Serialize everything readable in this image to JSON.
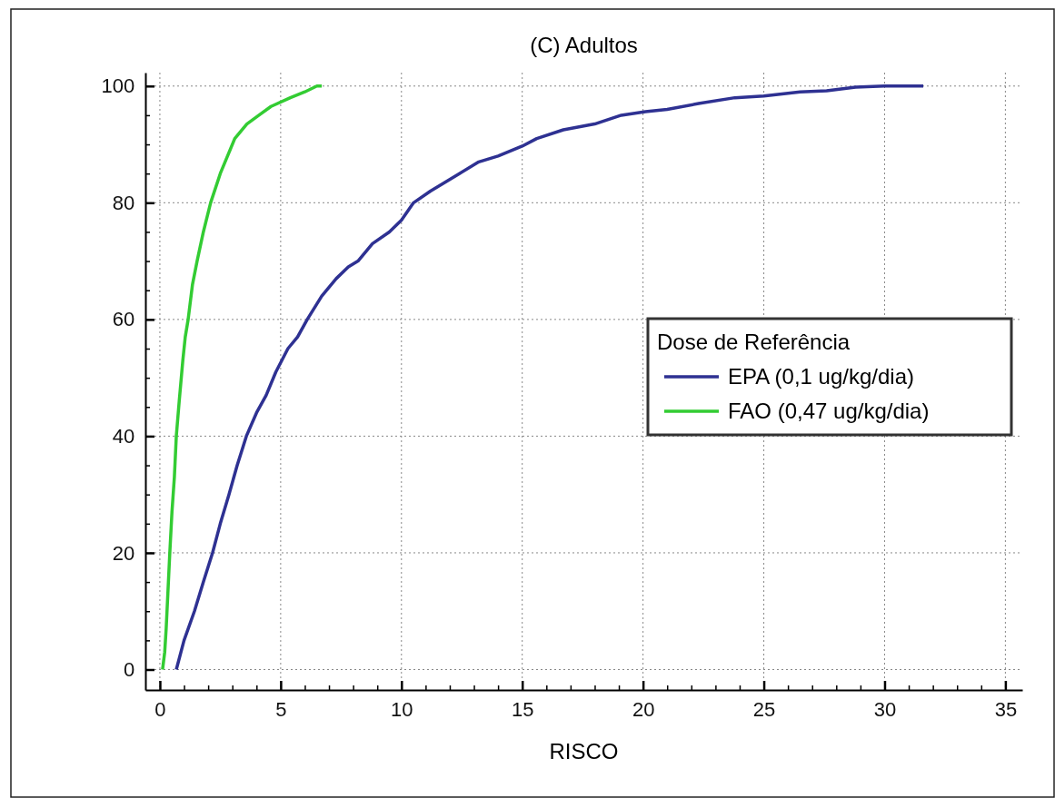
{
  "chart_data": {
    "type": "line",
    "title": "(C) Adultos",
    "xlabel": "RISCO",
    "legend_title": "Dose de Referência",
    "xlim": [
      -0.6,
      35.7
    ],
    "ylim": [
      -3.5,
      102.3
    ],
    "xticks": [
      0,
      {
        "value": 1,
        "label": null
      },
      {
        "value": 2,
        "label": null
      },
      {
        "value": 3,
        "label": null
      },
      {
        "value": 4,
        "label": null
      },
      5,
      {
        "value": 6,
        "label": null
      },
      {
        "value": 7,
        "label": null
      },
      {
        "value": 8,
        "label": null
      },
      {
        "value": 9,
        "label": null
      },
      10,
      {
        "value": 11,
        "label": null
      },
      {
        "value": 12,
        "label": null
      },
      {
        "value": 13,
        "label": null
      },
      {
        "value": 14,
        "label": null
      },
      15,
      {
        "value": 16,
        "label": null
      },
      {
        "value": 17,
        "label": null
      },
      {
        "value": 18,
        "label": null
      },
      {
        "value": 19,
        "label": null
      },
      20,
      {
        "value": 21,
        "label": null
      },
      {
        "value": 22,
        "label": null
      },
      {
        "value": 23,
        "label": null
      },
      {
        "value": 24,
        "label": null
      },
      25,
      {
        "value": 26,
        "label": null
      },
      {
        "value": 27,
        "label": null
      },
      {
        "value": 28,
        "label": null
      },
      {
        "value": 29,
        "label": null
      },
      30,
      {
        "value": 31,
        "label": null
      },
      {
        "value": 32,
        "label": null
      },
      {
        "value": 33,
        "label": null
      },
      {
        "value": 34,
        "label": null
      },
      35
    ],
    "yticks": [
      0,
      {
        "value": 5,
        "label": null
      },
      {
        "value": 10,
        "label": null
      },
      {
        "value": 15,
        "label": null
      },
      20,
      {
        "value": 25,
        "label": null
      },
      {
        "value": 30,
        "label": null
      },
      {
        "value": 35,
        "label": null
      },
      40,
      {
        "value": 45,
        "label": null
      },
      {
        "value": 50,
        "label": null
      },
      {
        "value": 55,
        "label": null
      },
      60,
      {
        "value": 65,
        "label": null
      },
      {
        "value": 70,
        "label": null
      },
      {
        "value": 75,
        "label": null
      },
      80,
      {
        "value": 85,
        "label": null
      },
      {
        "value": 90,
        "label": null
      },
      {
        "value": 95,
        "label": null
      },
      100
    ],
    "grid": true,
    "legend": "right",
    "marker": "none",
    "line_style": "solid",
    "series": [
      {
        "name": "EPA (0,1 ug/kg/dia)",
        "color": "#2e3192",
        "x": [
          0.68,
          1.0,
          1.43,
          1.8,
          2.18,
          2.5,
          2.86,
          3.2,
          3.58,
          4.0,
          4.4,
          4.8,
          5.3,
          5.7,
          6.1,
          6.7,
          7.3,
          7.8,
          8.2,
          8.8,
          9.5,
          10.0,
          10.5,
          11.2,
          12.4,
          13.2,
          14.0,
          15.0,
          15.6,
          16.7,
          18.0,
          19.1,
          20.1,
          21.0,
          22.3,
          23.8,
          25.0,
          26.5,
          27.6,
          28.8,
          30.0,
          31.6
        ],
        "values": [
          0,
          5,
          10,
          15,
          20,
          25,
          30,
          35,
          40,
          44,
          47,
          51,
          55,
          57,
          60,
          64,
          67,
          69,
          70,
          73,
          75,
          77,
          80,
          82,
          85,
          87,
          88,
          89.7,
          91,
          92.5,
          93.5,
          95,
          95.6,
          96,
          97,
          98,
          98.3,
          99,
          99.2,
          99.8,
          100,
          100
        ]
      },
      {
        "name": "FAO (0,47 ug/kg/dia)",
        "color": "#33cc33",
        "x": [
          0.11,
          0.2,
          0.26,
          0.33,
          0.41,
          0.5,
          0.6,
          0.68,
          0.8,
          0.95,
          1.05,
          1.17,
          1.35,
          1.54,
          1.8,
          2.1,
          2.5,
          2.8,
          3.1,
          3.6,
          4.1,
          4.6,
          5.4,
          6.0,
          6.5,
          6.7
        ],
        "values": [
          0,
          3,
          7,
          13,
          20,
          27,
          33,
          40,
          46,
          53,
          57,
          60,
          66,
          70,
          75,
          80,
          85,
          88,
          91,
          93.5,
          95,
          96.5,
          98,
          99,
          100,
          100
        ]
      }
    ]
  }
}
